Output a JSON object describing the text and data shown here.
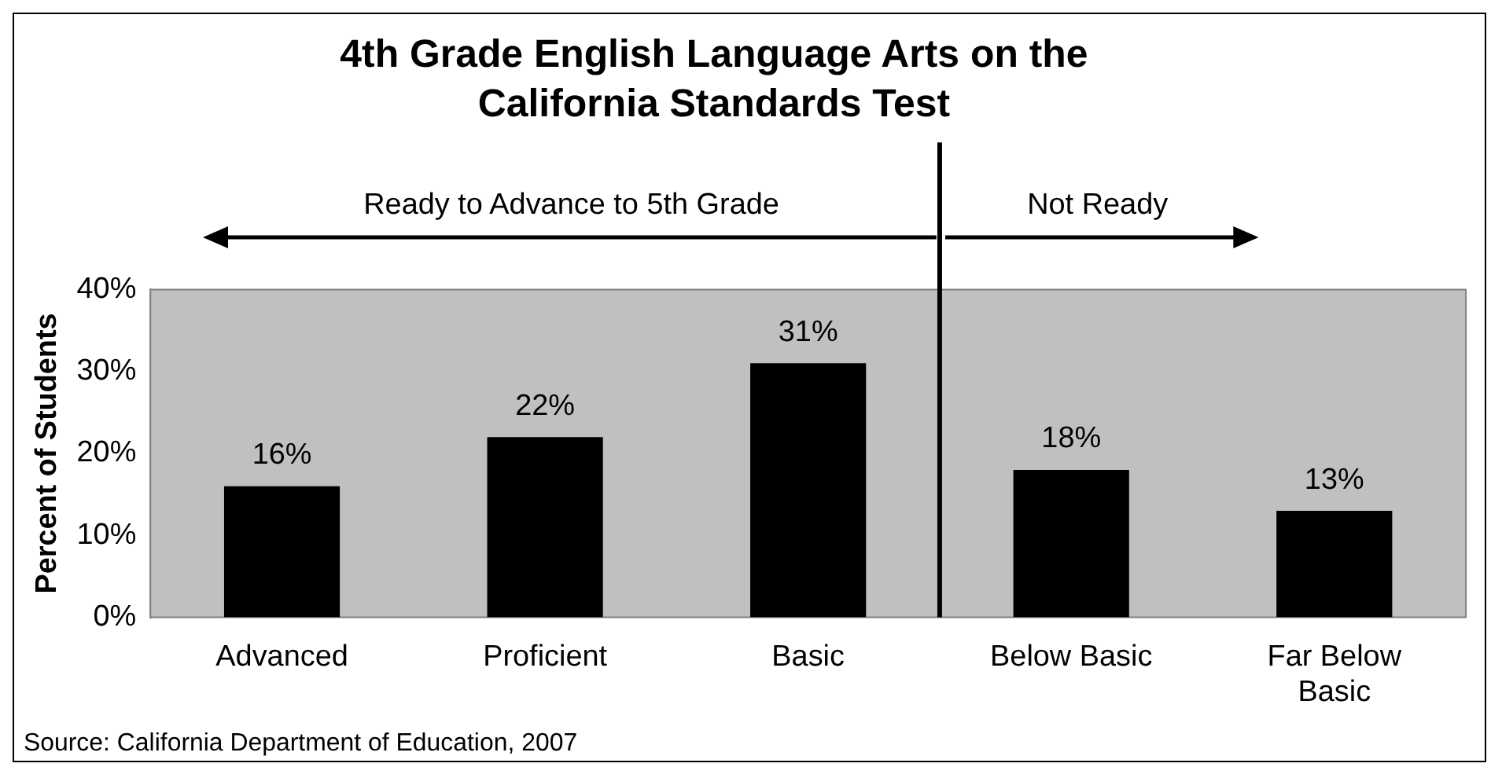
{
  "chart_data": {
    "type": "bar",
    "title": "4th Grade English Language Arts on the California Standards Test",
    "ylabel": "Percent of Students",
    "categories": [
      "Advanced",
      "Proficient",
      "Basic",
      "Below Basic",
      "Far Below Basic"
    ],
    "values": [
      16,
      22,
      31,
      18,
      13
    ],
    "color": "#000000",
    "value_labels": [
      "16%",
      "22%",
      "31%",
      "18%",
      "13%"
    ],
    "ylim": [
      0,
      40
    ],
    "yticks": [
      {
        "value": 0,
        "label": "0%"
      },
      {
        "value": 10,
        "label": "10%"
      },
      {
        "value": 20,
        "label": "20%"
      },
      {
        "value": 30,
        "label": "30%"
      },
      {
        "value": 40,
        "label": "40%"
      }
    ],
    "grid": false,
    "legend": false,
    "annotations": [
      "Ready to Advance to 5th Grade",
      "Not Ready",
      "Source: California Department of Education, 2007"
    ]
  }
}
